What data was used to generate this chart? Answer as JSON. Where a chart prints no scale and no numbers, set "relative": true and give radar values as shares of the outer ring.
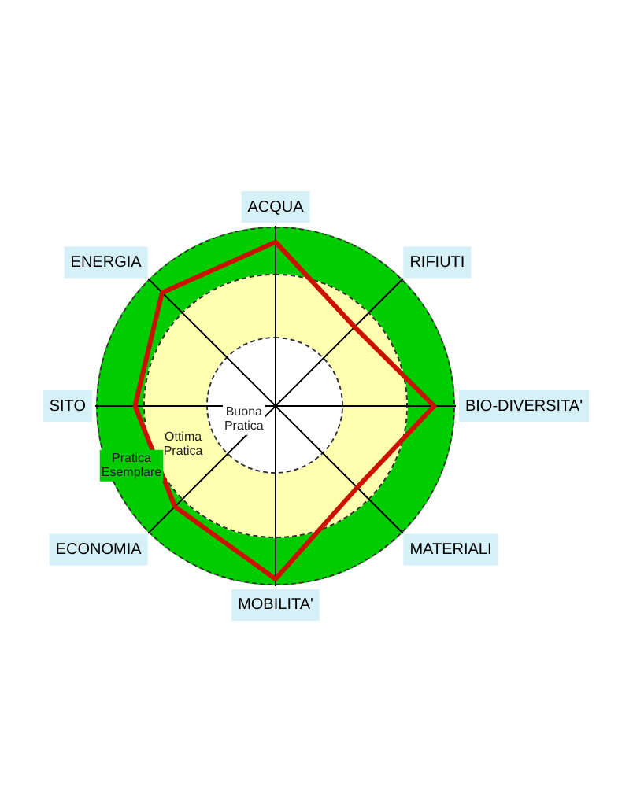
{
  "chart_data": {
    "type": "radar",
    "relative": true,
    "categories": [
      "ACQUA",
      "RIFIUTI",
      "BIO-DIVERSITA'",
      "MATERIALI",
      "MOBILITA'",
      "ECONOMIA",
      "SITO",
      "ENERGIA"
    ],
    "series": [
      {
        "color": "#cc1100",
        "values": [
          0.91,
          0.62,
          0.88,
          0.64,
          0.96,
          0.79,
          0.78,
          0.89
        ]
      }
    ],
    "annotations": [
      "Buona Pratica",
      "Ottima Pratica",
      "Pratica Esemplare"
    ],
    "marker": "none",
    "legend": false
  }
}
